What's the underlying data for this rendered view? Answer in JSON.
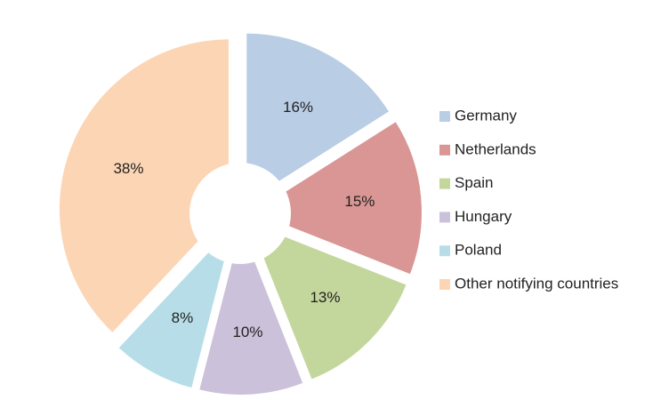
{
  "chart_data": {
    "type": "pie",
    "donut": true,
    "exploded": true,
    "legend": "right",
    "categories": [
      "Germany",
      "Netherlands",
      "Spain",
      "Hungary",
      "Poland",
      "Other notifying countries"
    ],
    "values": [
      16,
      15,
      13,
      10,
      8,
      38
    ],
    "value_labels": [
      "16%",
      "15%",
      "13%",
      "10%",
      "8%",
      "38%"
    ],
    "colors": [
      "#b9cde5",
      "#d99694",
      "#c3d69b",
      "#ccc1da",
      "#b7dee8",
      "#fcd5b5"
    ]
  }
}
